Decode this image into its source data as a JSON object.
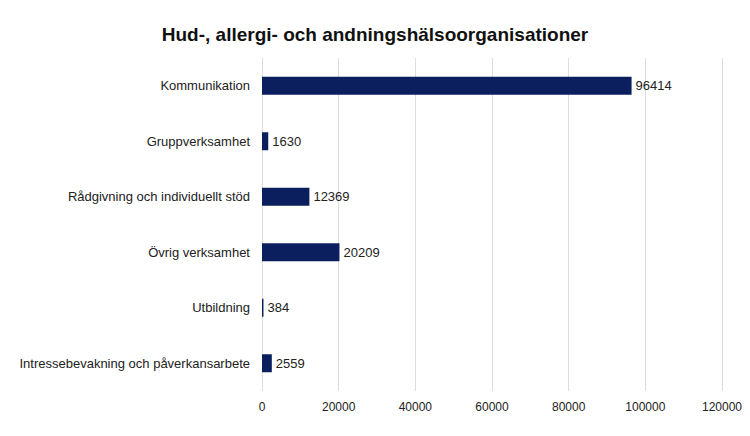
{
  "chart_data": {
    "type": "bar",
    "title": "Hud-, allergi- och andningshälsoorganisationer",
    "orientation": "horizontal",
    "categories": [
      "Kommunikation",
      "Gruppverksamhet",
      "Rådgivning och individuellt stöd",
      "Övrig verksamhet",
      "Utbildning",
      "Intressebevakning och påverkansarbete"
    ],
    "values": [
      96414,
      1630,
      12369,
      20209,
      384,
      2559
    ],
    "color": "#0b1f5e",
    "xlim": [
      0,
      120000
    ],
    "xticks": [
      0,
      20000,
      40000,
      60000,
      80000,
      100000,
      120000
    ],
    "grid": true,
    "data_labels": true
  }
}
